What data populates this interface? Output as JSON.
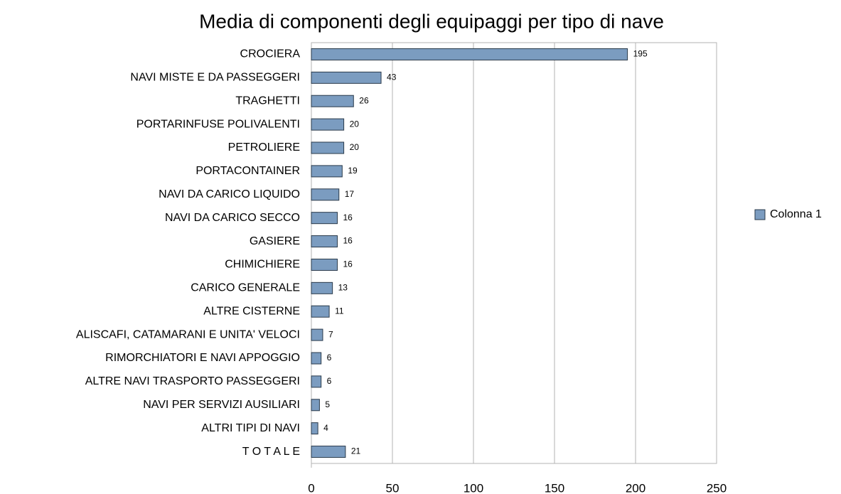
{
  "chart_data": {
    "type": "bar",
    "orientation": "horizontal",
    "title": "Media di componenti degli equipaggi per tipo di nave",
    "categories": [
      "CROCIERA",
      "NAVI MISTE E DA PASSEGGERI",
      "TRAGHETTI",
      "PORTARINFUSE POLIVALENTI",
      "PETROLIERE",
      "PORTACONTAINER",
      "NAVI DA CARICO LIQUIDO",
      "NAVI DA CARICO SECCO",
      "GASIERE",
      "CHIMICHIERE",
      "CARICO GENERALE",
      "ALTRE CISTERNE",
      "ALISCAFI, CATAMARANI E UNITA' VELOCI",
      "RIMORCHIATORI E NAVI APPOGGIO",
      "ALTRE NAVI TRASPORTO PASSEGGERI",
      "NAVI PER SERVIZI AUSILIARI",
      "ALTRI TIPI DI NAVI",
      "T O T A L E"
    ],
    "series": [
      {
        "name": "Colonna 1",
        "color": "#7b9cc0",
        "values": [
          195,
          43,
          26,
          20,
          20,
          19,
          17,
          16,
          16,
          16,
          13,
          11,
          7,
          6,
          6,
          5,
          4,
          21
        ]
      }
    ],
    "xlim": [
      0,
      250
    ],
    "xticks": [
      0,
      50,
      100,
      150,
      200,
      250
    ],
    "grid": true,
    "legend": "right"
  }
}
